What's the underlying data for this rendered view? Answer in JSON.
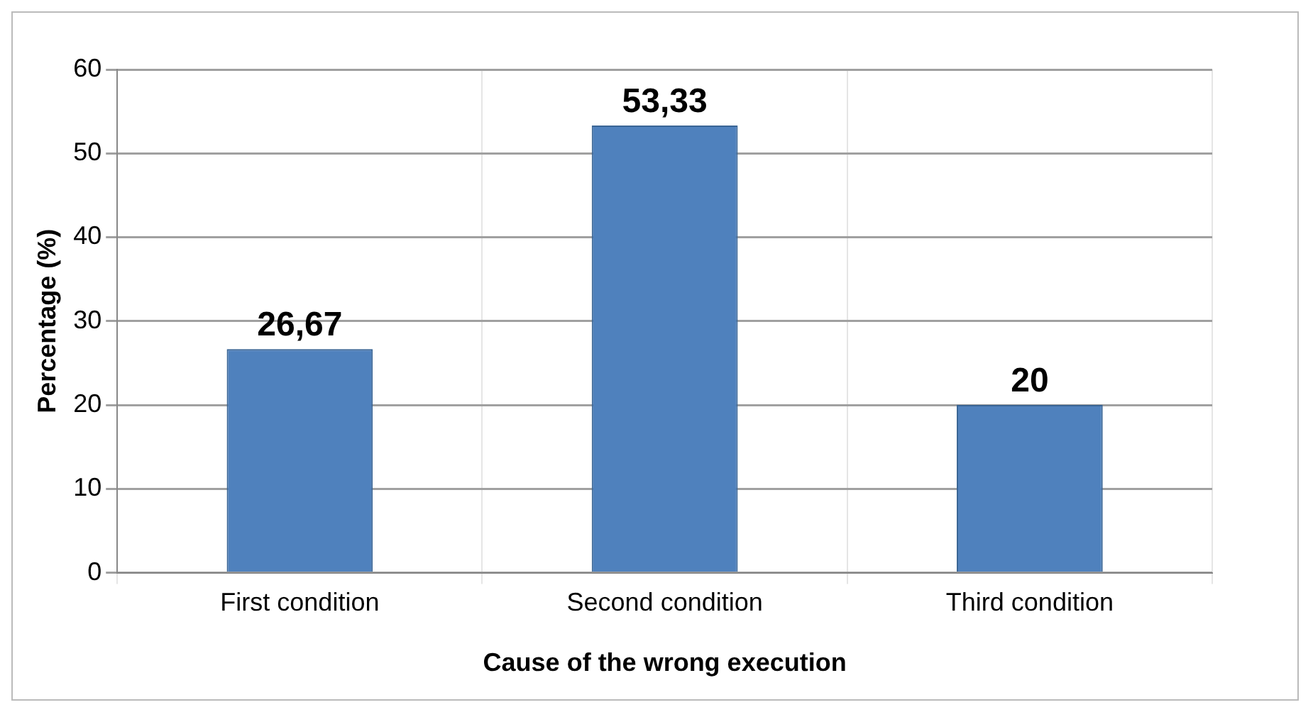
{
  "chart_data": {
    "type": "bar",
    "xlabel": "Cause of the wrong execution",
    "ylabel": "Percentage (%)",
    "categories": [
      "First condition",
      "Second condition",
      "Third condition"
    ],
    "values": [
      26.67,
      53.33,
      20
    ],
    "value_labels": [
      "26,67",
      "53,33",
      "20"
    ],
    "color": "#4f81bd",
    "ylim": [
      0,
      60
    ],
    "yticks": [
      0,
      10,
      20,
      30,
      40,
      50,
      60
    ],
    "grid": true,
    "legend": false
  }
}
